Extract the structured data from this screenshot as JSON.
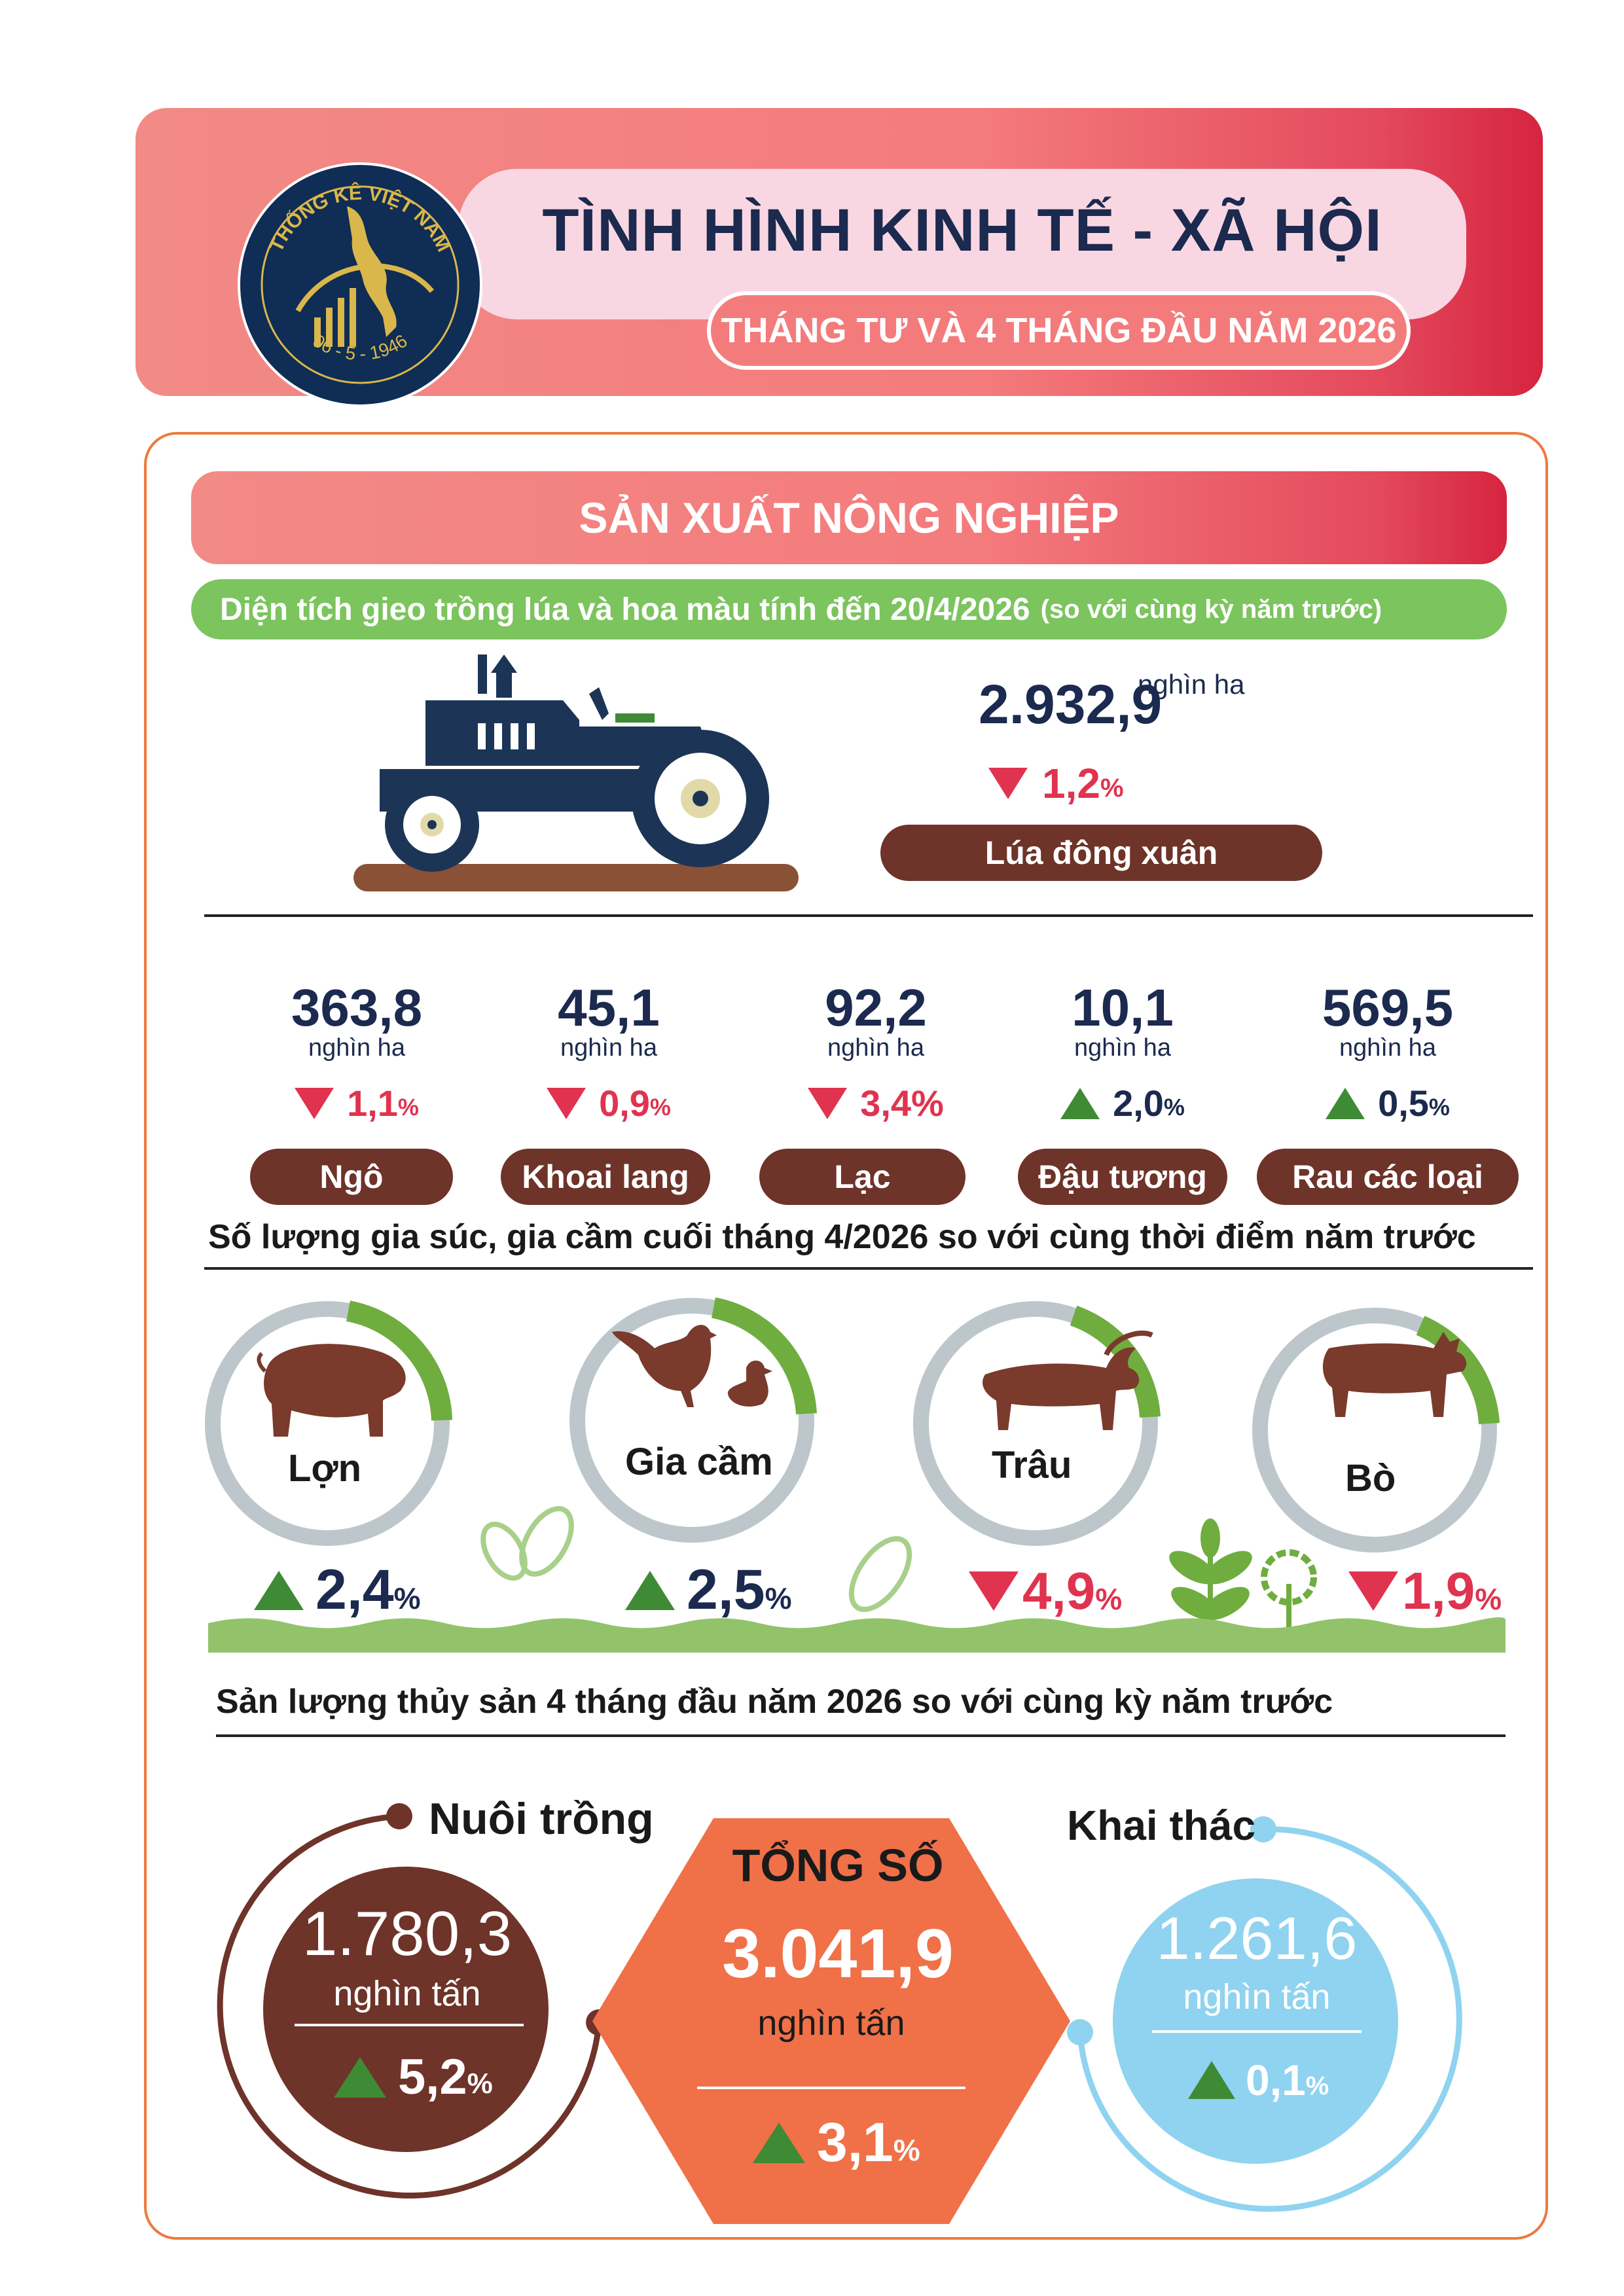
{
  "header": {
    "title": "TÌNH HÌNH KINH TẾ - XÃ HỘI",
    "subtitle": "THÁNG TƯ VÀ 4 THÁNG ĐẦU NĂM 2026",
    "logo_text_top": "THỐNG KÊ VIỆT NAM",
    "logo_text_bottom": "06 - 5 - 1946"
  },
  "section": {
    "title": "SẢN XUẤT NÔNG NGHIỆP",
    "area_heading": "Diện tích gieo trồng lúa và hoa màu tính đến 20/4/2026",
    "area_heading_note": "(so với cùng kỳ năm trước)",
    "rice": {
      "value": "2.932,9",
      "unit": "nghìn ha",
      "change": "1,2",
      "pct": "%",
      "direction": "down",
      "label": "Lúa đông xuân"
    }
  },
  "crops": [
    {
      "value": "363,8",
      "unit": "nghìn ha",
      "change": "1,1",
      "pct": "%",
      "direction": "down",
      "label": "Ngô"
    },
    {
      "value": "45,1",
      "unit": "nghìn ha",
      "change": "0,9",
      "pct": "%",
      "direction": "down",
      "label": "Khoai lang"
    },
    {
      "value": "92,2",
      "unit": "nghìn ha",
      "change": "3,4",
      "pct": "%",
      "direction": "down",
      "label": "Lạc"
    },
    {
      "value": "10,1",
      "unit": "nghìn ha",
      "change": "2,0",
      "pct": "%",
      "direction": "up",
      "label": "Đậu tương"
    },
    {
      "value": "569,5",
      "unit": "nghìn ha",
      "change": "0,5",
      "pct": "%",
      "direction": "up",
      "label": "Rau các loại"
    }
  ],
  "livestock_heading": "Số lượng gia súc, gia cầm cuối tháng 4/2026 so với cùng thời điểm năm trước",
  "livestock": [
    {
      "label": "Lợn",
      "change": "2,4",
      "pct": "%",
      "direction": "up"
    },
    {
      "label": "Gia cầm",
      "change": "2,5",
      "pct": "%",
      "direction": "up"
    },
    {
      "label": "Trâu",
      "change": "4,9",
      "pct": "%",
      "direction": "down"
    },
    {
      "label": "Bò",
      "change": "1,9",
      "pct": "%",
      "direction": "down"
    }
  ],
  "fishery_heading": "Sản lượng thủy sản 4 tháng đầu năm 2026 so với cùng kỳ năm trước",
  "fishery": {
    "aquaculture": {
      "label": "Nuôi trồng",
      "value": "1.780,3",
      "unit": "nghìn tấn",
      "change": "5,2",
      "pct": "%"
    },
    "total": {
      "label": "TỔNG SỐ",
      "value": "3.041,9",
      "unit": "nghìn tấn",
      "change": "3,1",
      "pct": "%"
    },
    "capture": {
      "label": "Khai thác",
      "value": "1.261,6",
      "unit": "nghìn tấn",
      "change": "0,1",
      "pct": "%"
    }
  },
  "colors": {
    "red": "#e0334f",
    "green": "#3f8a34",
    "brown": "#6e3329",
    "navy": "#1b2a4e",
    "orange": "#f07048",
    "sky": "#8fd3f0"
  }
}
